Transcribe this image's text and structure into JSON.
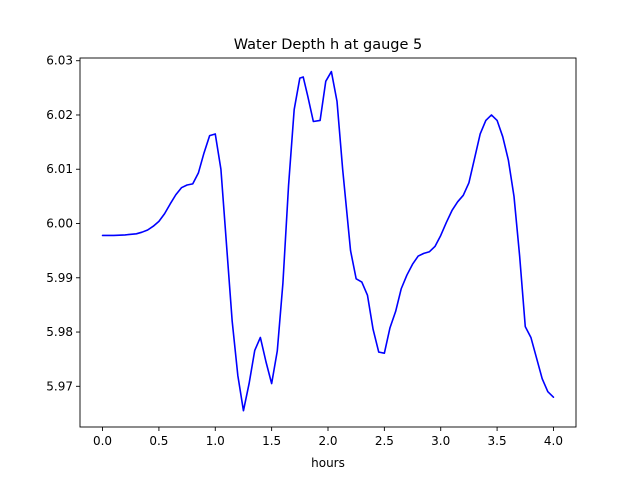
{
  "chart_data": {
    "type": "line",
    "title": "Water Depth h at gauge 5",
    "xlabel": "hours",
    "ylabel": "",
    "xlim": [
      -0.2,
      4.2
    ],
    "ylim": [
      5.9625,
      6.0305
    ],
    "grid": false,
    "legend": "none",
    "xticks": [
      0.0,
      0.5,
      1.0,
      1.5,
      2.0,
      2.5,
      3.0,
      3.5,
      4.0
    ],
    "xtick_labels": [
      "0.0",
      "0.5",
      "1.0",
      "1.5",
      "2.0",
      "2.5",
      "3.0",
      "3.5",
      "4.0"
    ],
    "yticks": [
      5.97,
      5.98,
      5.99,
      6.0,
      6.01,
      6.02,
      6.03
    ],
    "ytick_labels": [
      "5.97",
      "5.98",
      "5.99",
      "6.00",
      "6.01",
      "6.02",
      "6.03"
    ],
    "series": [
      {
        "color": "#0000ff",
        "x": [
          0.0,
          0.1,
          0.2,
          0.3,
          0.35,
          0.4,
          0.45,
          0.5,
          0.55,
          0.6,
          0.65,
          0.7,
          0.75,
          0.8,
          0.85,
          0.9,
          0.95,
          1.0,
          1.05,
          1.1,
          1.15,
          1.2,
          1.25,
          1.3,
          1.35,
          1.4,
          1.45,
          1.5,
          1.55,
          1.6,
          1.65,
          1.7,
          1.75,
          1.78,
          1.82,
          1.87,
          1.93,
          1.98,
          2.03,
          2.08,
          2.13,
          2.2,
          2.25,
          2.3,
          2.35,
          2.4,
          2.45,
          2.5,
          2.55,
          2.6,
          2.65,
          2.7,
          2.75,
          2.8,
          2.85,
          2.9,
          2.95,
          3.0,
          3.05,
          3.1,
          3.15,
          3.2,
          3.25,
          3.3,
          3.35,
          3.4,
          3.45,
          3.5,
          3.55,
          3.6,
          3.65,
          3.7,
          3.75,
          3.8,
          3.85,
          3.9,
          3.95,
          4.0
        ],
        "y": [
          5.9978,
          5.9978,
          5.9979,
          5.9981,
          5.9984,
          5.9988,
          5.9995,
          6.0004,
          6.0018,
          6.0036,
          6.0053,
          6.0066,
          6.0071,
          6.0073,
          6.0093,
          6.013,
          6.0162,
          6.0165,
          6.01,
          5.996,
          5.982,
          5.972,
          5.9655,
          5.9705,
          5.9766,
          5.979,
          5.9745,
          5.9705,
          5.9765,
          5.989,
          6.007,
          6.021,
          6.0268,
          6.027,
          6.0235,
          6.0188,
          6.019,
          6.0262,
          6.028,
          6.0225,
          6.01,
          5.995,
          5.9898,
          5.9892,
          5.9868,
          5.9805,
          5.9763,
          5.9761,
          5.9808,
          5.9838,
          5.988,
          5.9905,
          5.9925,
          5.994,
          5.9945,
          5.9948,
          5.9958,
          5.9978,
          6.0002,
          6.0024,
          6.004,
          6.0052,
          6.0075,
          6.012,
          6.0165,
          6.019,
          6.02,
          6.019,
          6.016,
          6.0117,
          6.005,
          5.994,
          5.981,
          5.979,
          5.9752,
          5.9714,
          5.969,
          5.968
        ]
      }
    ]
  }
}
